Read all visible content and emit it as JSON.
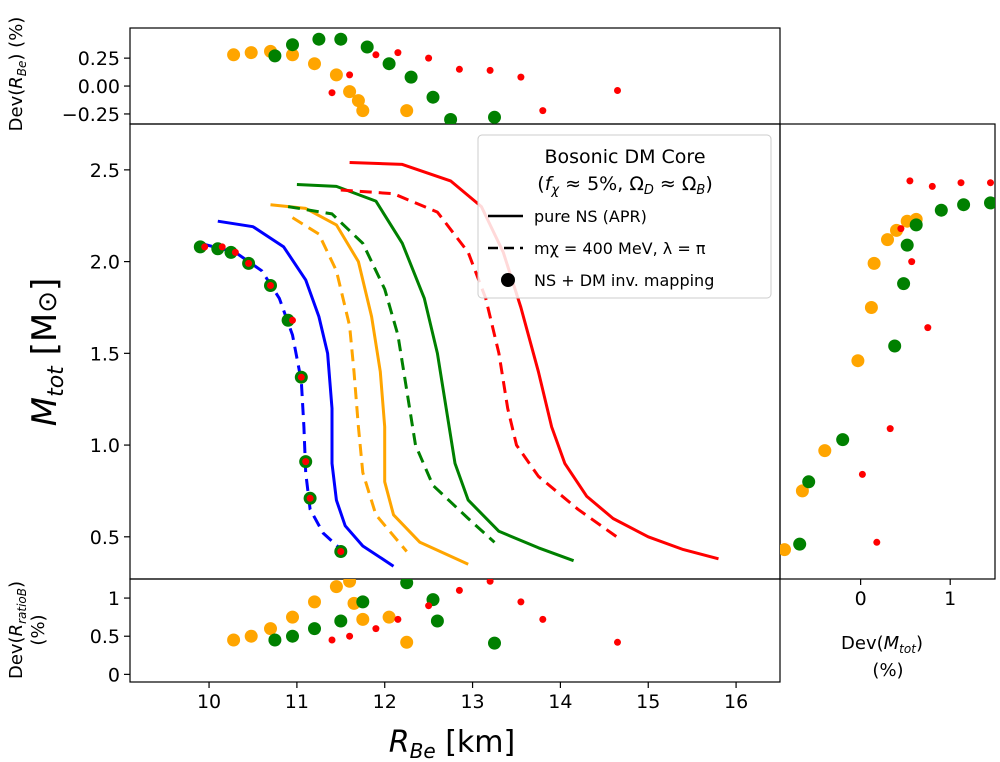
{
  "colors": {
    "blue": "#0000ff",
    "orange": "#ffa500",
    "green": "#008000",
    "red": "#ff0000"
  },
  "legend": {
    "title_line1": "Bosonic DM Core",
    "title_line2": "(fχ ≈ 5%, ΩD ≈ ΩB)",
    "entries": [
      {
        "label": "pure NS (APR)",
        "style": "solid"
      },
      {
        "label": "mχ = 400 MeV, λ = π",
        "style": "dashed"
      },
      {
        "label": "NS + DM inv. mapping",
        "style": "dot"
      }
    ],
    "placement": "upper-right"
  },
  "chart_data": [
    {
      "panel": "main",
      "type": "line",
      "xlabel": "R_Be [km]",
      "ylabel": "M_tot [M⊙]",
      "xlim": [
        9.1,
        16.5
      ],
      "ylim": [
        0.27,
        2.75
      ],
      "xticks": [
        10,
        11,
        12,
        13,
        14,
        15,
        16
      ],
      "yticks": [
        0.5,
        1.0,
        1.5,
        2.0,
        2.5
      ],
      "ytick_labels": [
        "0.5",
        "1.0",
        "1.5",
        "2.0",
        "2.5"
      ],
      "grid": false,
      "series": [
        {
          "color": "blue",
          "style": "solid",
          "points": [
            [
              10.1,
              2.22
            ],
            [
              10.5,
              2.19
            ],
            [
              10.85,
              2.08
            ],
            [
              11.1,
              1.9
            ],
            [
              11.25,
              1.7
            ],
            [
              11.35,
              1.5
            ],
            [
              11.4,
              1.2
            ],
            [
              11.4,
              0.9
            ],
            [
              11.45,
              0.7
            ],
            [
              11.55,
              0.56
            ],
            [
              11.75,
              0.45
            ],
            [
              12.1,
              0.34
            ]
          ]
        },
        {
          "color": "blue",
          "style": "dashed",
          "points": [
            [
              9.9,
              2.1
            ],
            [
              10.3,
              2.05
            ],
            [
              10.6,
              1.95
            ],
            [
              10.8,
              1.8
            ],
            [
              10.95,
              1.6
            ],
            [
              11.05,
              1.35
            ],
            [
              11.08,
              1.1
            ],
            [
              11.1,
              0.85
            ],
            [
              11.15,
              0.65
            ],
            [
              11.3,
              0.52
            ],
            [
              11.55,
              0.41
            ]
          ]
        },
        {
          "color": "orange",
          "style": "solid",
          "points": [
            [
              10.7,
              2.31
            ],
            [
              11.1,
              2.29
            ],
            [
              11.45,
              2.2
            ],
            [
              11.7,
              2.0
            ],
            [
              11.85,
              1.7
            ],
            [
              11.95,
              1.4
            ],
            [
              12.0,
              1.1
            ],
            [
              12.0,
              0.8
            ],
            [
              12.1,
              0.62
            ],
            [
              12.4,
              0.47
            ],
            [
              12.95,
              0.35
            ]
          ]
        },
        {
          "color": "orange",
          "style": "dashed",
          "points": [
            [
              10.95,
              2.24
            ],
            [
              11.25,
              2.15
            ],
            [
              11.45,
              1.95
            ],
            [
              11.6,
              1.65
            ],
            [
              11.65,
              1.4
            ],
            [
              11.7,
              1.1
            ],
            [
              11.75,
              0.85
            ],
            [
              11.9,
              0.62
            ],
            [
              12.25,
              0.42
            ]
          ]
        },
        {
          "color": "green",
          "style": "solid",
          "points": [
            [
              11.0,
              2.42
            ],
            [
              11.45,
              2.41
            ],
            [
              11.9,
              2.33
            ],
            [
              12.2,
              2.1
            ],
            [
              12.45,
              1.8
            ],
            [
              12.6,
              1.5
            ],
            [
              12.7,
              1.2
            ],
            [
              12.8,
              0.9
            ],
            [
              12.95,
              0.7
            ],
            [
              13.3,
              0.53
            ],
            [
              13.75,
              0.44
            ],
            [
              14.15,
              0.37
            ]
          ]
        },
        {
          "color": "green",
          "style": "dashed",
          "points": [
            [
              10.9,
              2.3
            ],
            [
              11.4,
              2.26
            ],
            [
              11.75,
              2.1
            ],
            [
              12.0,
              1.85
            ],
            [
              12.15,
              1.6
            ],
            [
              12.25,
              1.3
            ],
            [
              12.35,
              1.0
            ],
            [
              12.55,
              0.78
            ],
            [
              12.95,
              0.6
            ],
            [
              13.25,
              0.47
            ]
          ]
        },
        {
          "color": "red",
          "style": "solid",
          "points": [
            [
              11.6,
              2.54
            ],
            [
              12.2,
              2.53
            ],
            [
              12.75,
              2.44
            ],
            [
              13.1,
              2.3
            ],
            [
              13.35,
              2.05
            ],
            [
              13.55,
              1.75
            ],
            [
              13.75,
              1.4
            ],
            [
              13.9,
              1.1
            ],
            [
              14.05,
              0.9
            ],
            [
              14.3,
              0.72
            ],
            [
              14.6,
              0.6
            ],
            [
              15.0,
              0.5
            ],
            [
              15.4,
              0.43
            ],
            [
              15.8,
              0.38
            ]
          ]
        },
        {
          "color": "red",
          "style": "dashed",
          "points": [
            [
              11.5,
              2.39
            ],
            [
              12.1,
              2.37
            ],
            [
              12.6,
              2.27
            ],
            [
              12.95,
              2.05
            ],
            [
              13.15,
              1.8
            ],
            [
              13.3,
              1.5
            ],
            [
              13.4,
              1.2
            ],
            [
              13.5,
              1.0
            ],
            [
              13.75,
              0.83
            ],
            [
              14.2,
              0.65
            ],
            [
              14.7,
              0.48
            ]
          ]
        }
      ],
      "points": [
        {
          "color": "green",
          "size": "large",
          "coords": [
            [
              9.9,
              2.08
            ],
            [
              10.1,
              2.07
            ],
            [
              10.25,
              2.05
            ],
            [
              10.45,
              1.99
            ],
            [
              10.7,
              1.87
            ],
            [
              10.9,
              1.68
            ],
            [
              11.05,
              1.37
            ],
            [
              11.1,
              0.91
            ],
            [
              11.15,
              0.71
            ],
            [
              11.5,
              0.42
            ]
          ]
        },
        {
          "color": "red",
          "size": "small",
          "coords": [
            [
              9.95,
              2.08
            ],
            [
              10.15,
              2.08
            ],
            [
              10.3,
              2.05
            ],
            [
              10.45,
              1.99
            ],
            [
              10.7,
              1.87
            ],
            [
              10.95,
              1.68
            ],
            [
              11.05,
              1.37
            ],
            [
              11.1,
              0.91
            ],
            [
              11.15,
              0.71
            ],
            [
              11.5,
              0.42
            ]
          ]
        }
      ]
    },
    {
      "panel": "top",
      "type": "scatter",
      "ylabel": "Dev(R_Be) (%)",
      "xlim": [
        9.1,
        16.5
      ],
      "ylim": [
        -0.34,
        0.52
      ],
      "yticks": [
        -0.25,
        0.0,
        0.25
      ],
      "ytick_labels": [
        "−0.25",
        "0.00",
        "0.25"
      ],
      "series": [
        {
          "color": "orange",
          "size": "large",
          "points": [
            [
              10.28,
              0.28
            ],
            [
              10.48,
              0.3
            ],
            [
              10.7,
              0.31
            ],
            [
              10.95,
              0.28
            ],
            [
              11.2,
              0.2
            ],
            [
              11.45,
              0.1
            ],
            [
              11.6,
              -0.05
            ],
            [
              11.7,
              -0.13
            ],
            [
              11.75,
              -0.22
            ],
            [
              12.25,
              -0.22
            ]
          ]
        },
        {
          "color": "green",
          "size": "large",
          "points": [
            [
              10.75,
              0.27
            ],
            [
              10.95,
              0.37
            ],
            [
              11.25,
              0.42
            ],
            [
              11.5,
              0.42
            ],
            [
              11.8,
              0.35
            ],
            [
              12.05,
              0.2
            ],
            [
              12.3,
              0.08
            ],
            [
              12.55,
              -0.1
            ],
            [
              12.75,
              -0.3
            ],
            [
              13.25,
              -0.28
            ]
          ]
        },
        {
          "color": "red",
          "size": "small",
          "points": [
            [
              11.4,
              -0.06
            ],
            [
              11.6,
              0.1
            ],
            [
              11.9,
              0.28
            ],
            [
              12.15,
              0.3
            ],
            [
              12.5,
              0.25
            ],
            [
              12.85,
              0.15
            ],
            [
              13.2,
              0.14
            ],
            [
              13.55,
              0.08
            ],
            [
              13.8,
              -0.22
            ],
            [
              14.65,
              -0.04
            ]
          ]
        }
      ]
    },
    {
      "panel": "bottom",
      "type": "scatter",
      "ylabel": "Dev(R_ratioB) (%)",
      "xlim": [
        9.1,
        16.5
      ],
      "ylim": [
        -0.1,
        1.25
      ],
      "yticks": [
        0,
        0.5,
        1
      ],
      "ytick_labels": [
        "0",
        "0.5",
        "1"
      ],
      "series": [
        {
          "color": "orange",
          "size": "large",
          "points": [
            [
              10.28,
              0.45
            ],
            [
              10.48,
              0.5
            ],
            [
              10.7,
              0.6
            ],
            [
              10.95,
              0.75
            ],
            [
              11.2,
              0.95
            ],
            [
              11.45,
              1.15
            ],
            [
              11.6,
              1.22
            ],
            [
              11.65,
              0.93
            ],
            [
              11.75,
              0.72
            ],
            [
              12.05,
              0.75
            ],
            [
              12.25,
              0.42
            ]
          ]
        },
        {
          "color": "green",
          "size": "large",
          "points": [
            [
              10.75,
              0.45
            ],
            [
              10.95,
              0.5
            ],
            [
              11.2,
              0.6
            ],
            [
              11.5,
              0.7
            ],
            [
              11.75,
              0.95
            ],
            [
              12.25,
              1.2
            ],
            [
              12.55,
              0.98
            ],
            [
              12.6,
              0.7
            ],
            [
              13.25,
              0.41
            ]
          ]
        },
        {
          "color": "red",
          "size": "small",
          "points": [
            [
              11.4,
              0.45
            ],
            [
              11.6,
              0.5
            ],
            [
              11.9,
              0.6
            ],
            [
              12.15,
              0.72
            ],
            [
              12.5,
              0.9
            ],
            [
              12.85,
              1.1
            ],
            [
              13.2,
              1.22
            ],
            [
              13.55,
              0.95
            ],
            [
              13.8,
              0.72
            ],
            [
              14.65,
              0.42
            ]
          ]
        }
      ]
    },
    {
      "panel": "right",
      "type": "scatter",
      "xlabel": "Dev(M_tot) (%)",
      "xlim": [
        -0.9,
        1.5
      ],
      "ylim": [
        0.27,
        2.75
      ],
      "xticks": [
        0,
        1
      ],
      "xtick_labels": [
        "0",
        "1"
      ],
      "series": [
        {
          "color": "orange",
          "size": "large",
          "points": [
            [
              -0.85,
              0.43
            ],
            [
              -0.65,
              0.75
            ],
            [
              -0.4,
              0.97
            ],
            [
              -0.03,
              1.46
            ],
            [
              0.12,
              1.75
            ],
            [
              0.15,
              1.99
            ],
            [
              0.3,
              2.12
            ],
            [
              0.4,
              2.17
            ],
            [
              0.52,
              2.22
            ],
            [
              0.62,
              2.23
            ]
          ]
        },
        {
          "color": "green",
          "size": "large",
          "points": [
            [
              -0.68,
              0.46
            ],
            [
              -0.58,
              0.8
            ],
            [
              -0.2,
              1.03
            ],
            [
              0.38,
              1.54
            ],
            [
              0.48,
              1.88
            ],
            [
              0.52,
              2.09
            ],
            [
              0.62,
              2.2
            ],
            [
              0.9,
              2.28
            ],
            [
              1.15,
              2.31
            ],
            [
              1.45,
              2.32
            ]
          ]
        },
        {
          "color": "red",
          "size": "small",
          "points": [
            [
              0.18,
              0.47
            ],
            [
              0.02,
              0.84
            ],
            [
              0.33,
              1.09
            ],
            [
              0.75,
              1.64
            ],
            [
              0.57,
              2.0
            ],
            [
              0.45,
              2.18
            ],
            [
              0.55,
              2.44
            ],
            [
              0.8,
              2.41
            ],
            [
              1.12,
              2.43
            ],
            [
              1.45,
              2.43
            ]
          ]
        }
      ]
    }
  ]
}
